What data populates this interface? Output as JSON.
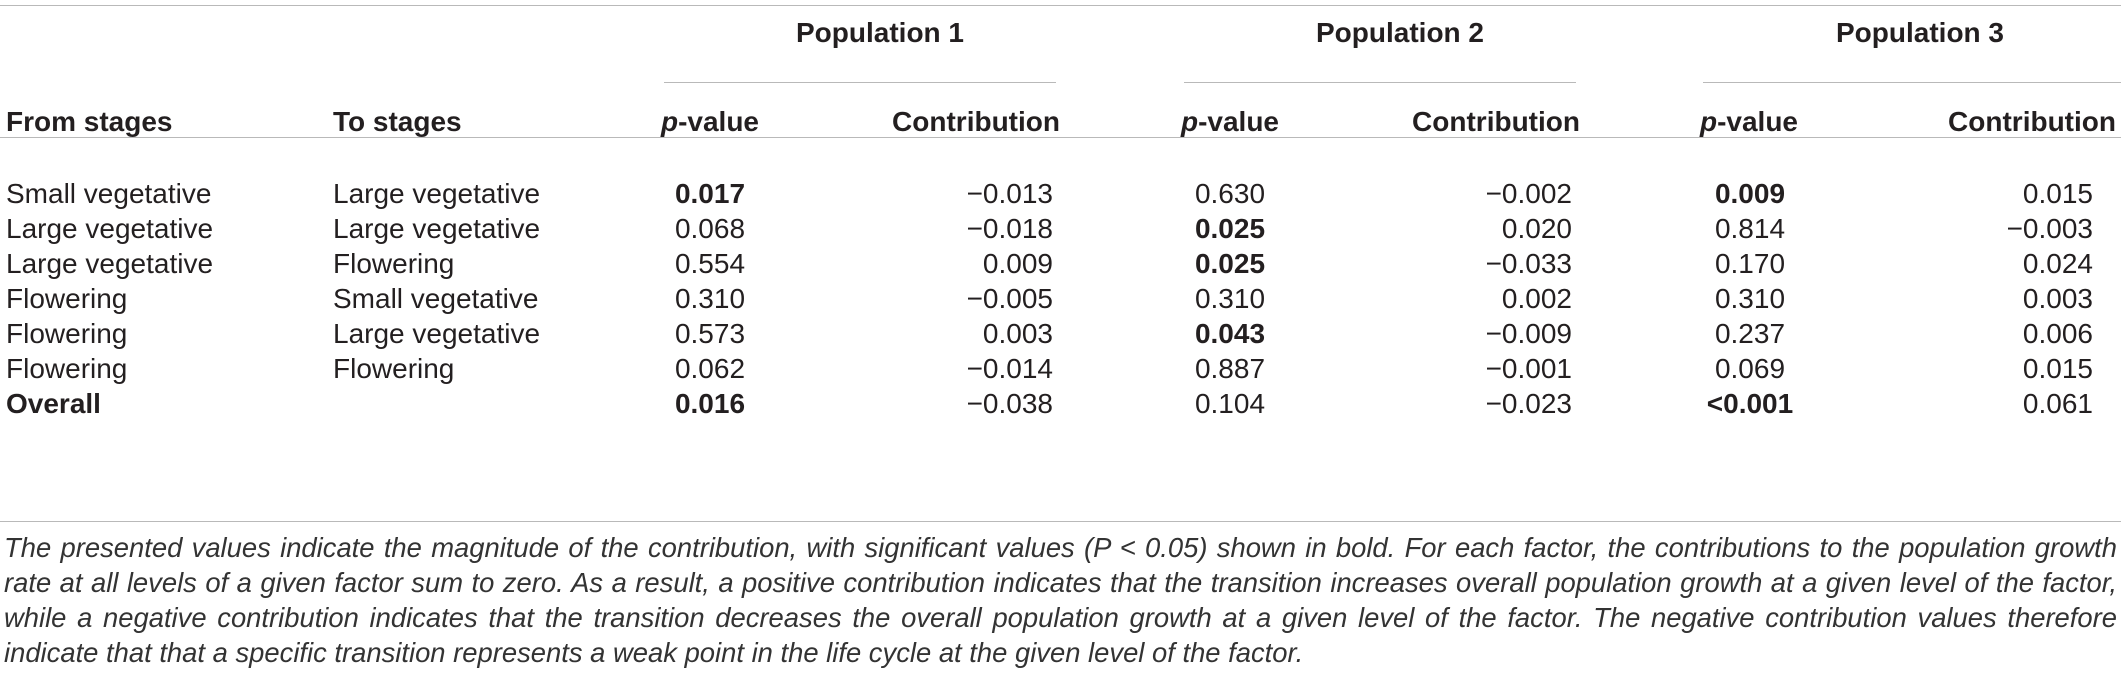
{
  "table": {
    "group_headers": [
      "Population 1",
      "Population 2",
      "Population 3"
    ],
    "column_headers": {
      "from": "From stages",
      "to": "To stages",
      "p_prefix": "p",
      "p_suffix": "-value",
      "contribution": "Contribution"
    },
    "rows": [
      {
        "from": "Small vegetative",
        "to": "Large vegetative",
        "from_bold": false,
        "p1": "0.017",
        "p1_bold": true,
        "c1": "−0.013",
        "p2": "0.630",
        "p2_bold": false,
        "c2": "−0.002",
        "p3": "0.009",
        "p3_bold": true,
        "c3": "0.015"
      },
      {
        "from": "Large vegetative",
        "to": "Large vegetative",
        "from_bold": false,
        "p1": "0.068",
        "p1_bold": false,
        "c1": "−0.018",
        "p2": "0.025",
        "p2_bold": true,
        "c2": "0.020",
        "p3": "0.814",
        "p3_bold": false,
        "c3": "−0.003"
      },
      {
        "from": "Large vegetative",
        "to": "Flowering",
        "from_bold": false,
        "p1": "0.554",
        "p1_bold": false,
        "c1": "0.009",
        "p2": "0.025",
        "p2_bold": true,
        "c2": "−0.033",
        "p3": "0.170",
        "p3_bold": false,
        "c3": "0.024"
      },
      {
        "from": "Flowering",
        "to": "Small vegetative",
        "from_bold": false,
        "p1": "0.310",
        "p1_bold": false,
        "c1": "−0.005",
        "p2": "0.310",
        "p2_bold": false,
        "c2": "0.002",
        "p3": "0.310",
        "p3_bold": false,
        "c3": "0.003"
      },
      {
        "from": "Flowering",
        "to": "Large vegetative",
        "from_bold": false,
        "p1": "0.573",
        "p1_bold": false,
        "c1": "0.003",
        "p2": "0.043",
        "p2_bold": true,
        "c2": "−0.009",
        "p3": "0.237",
        "p3_bold": false,
        "c3": "0.006"
      },
      {
        "from": "Flowering",
        "to": "Flowering",
        "from_bold": false,
        "p1": "0.062",
        "p1_bold": false,
        "c1": "−0.014",
        "p2": "0.887",
        "p2_bold": false,
        "c2": "−0.001",
        "p3": "0.069",
        "p3_bold": false,
        "c3": "0.015"
      },
      {
        "from": "Overall",
        "to": "",
        "from_bold": true,
        "p1": "0.016",
        "p1_bold": true,
        "c1": "−0.038",
        "p2": "0.104",
        "p2_bold": false,
        "c2": "−0.023",
        "p3": "<0.001",
        "p3_bold": true,
        "c3": "0.061"
      }
    ]
  },
  "footnote": "The presented values indicate the magnitude of the contribution, with significant values (P < 0.05) shown in bold. For each factor, the contributions to the population growth rate at all levels of a given factor sum to zero. As a result, a positive contribution indicates that the transition increases overall population growth at a given level of the factor, while a negative contribution indicates that the transition decreases the overall population growth at a given level of the factor. The negative contribution values therefore indicate that that a specific transition represents a weak point in the life cycle at the given level of the factor."
}
